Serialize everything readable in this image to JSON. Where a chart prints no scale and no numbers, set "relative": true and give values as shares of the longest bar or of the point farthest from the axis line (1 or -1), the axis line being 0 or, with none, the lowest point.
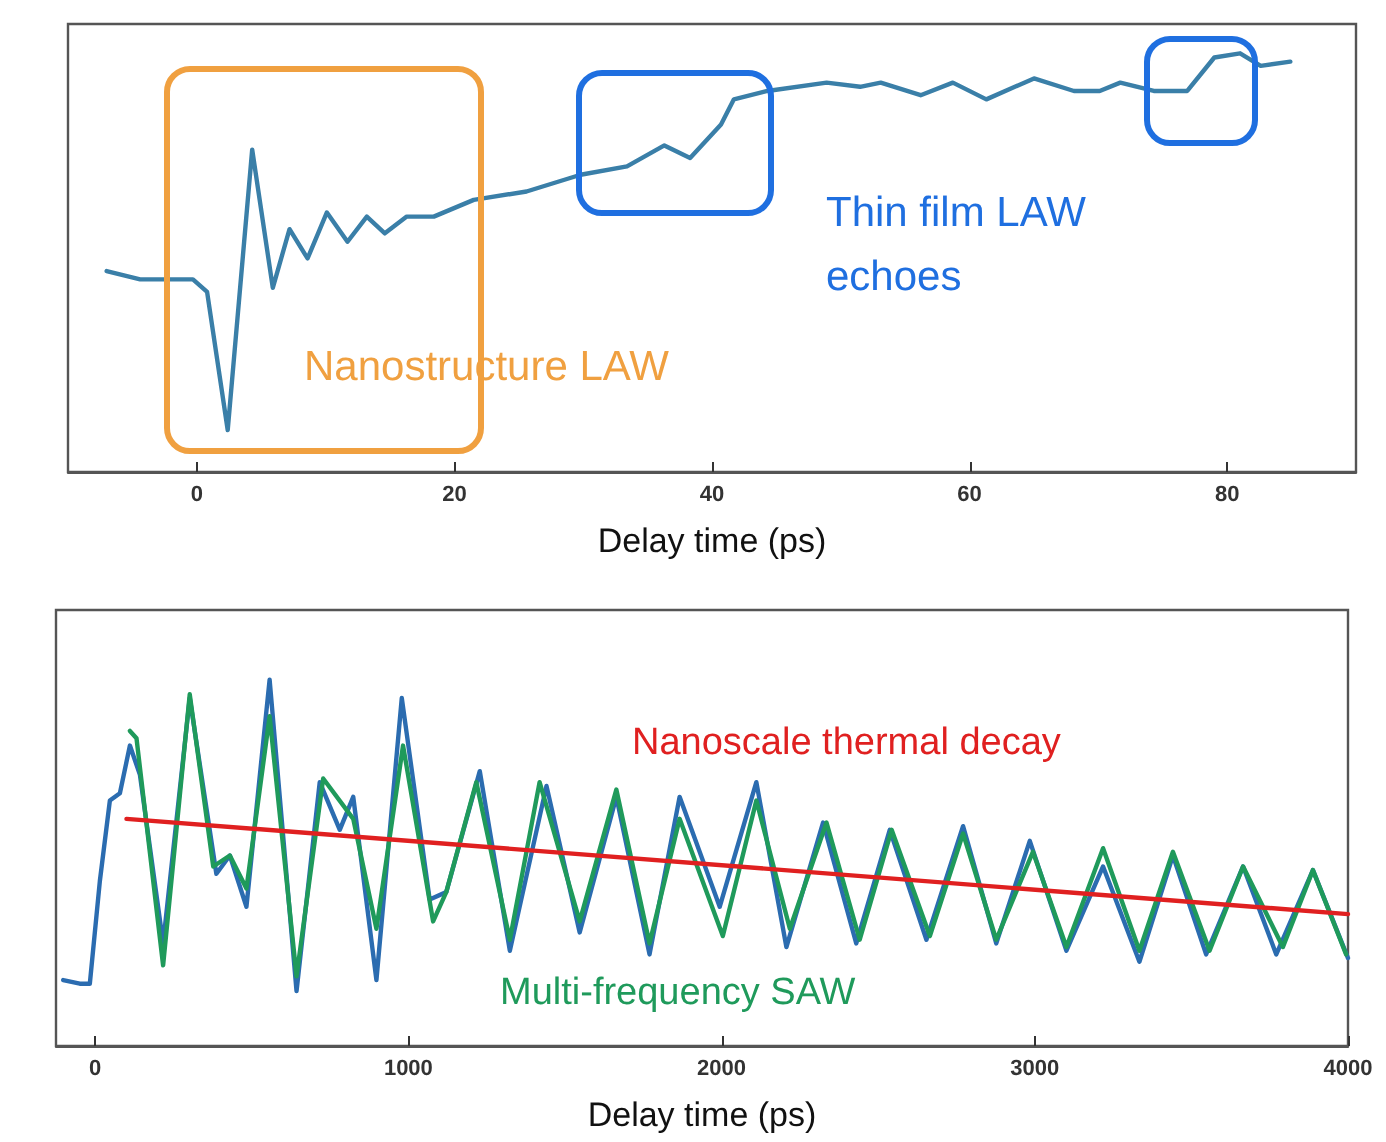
{
  "chart_data": [
    {
      "type": "line",
      "relative": true,
      "xlabel": "Delay time (ps)",
      "xlim": [
        -10,
        90
      ],
      "xticks": [
        0,
        20,
        40,
        60,
        80
      ],
      "tick_labels": "x",
      "annotations": [
        "Nanostructure LAW",
        "Thin film LAW\nechoes"
      ],
      "series": [
        {
          "color": "#3a7fa8",
          "x": [
            -7,
            -4.4,
            -0.3,
            0.8,
            2.4,
            4.3,
            5.9,
            7.2,
            8.6,
            10.1,
            11.7,
            13.2,
            14.6,
            16.3,
            18.4,
            21.5,
            25.6,
            29.8,
            33.4,
            36.3,
            38.3,
            40.7,
            41.7,
            44.3,
            48.9,
            51.5,
            53.1,
            56.2,
            58.7,
            61.3,
            65,
            68.1,
            70.1,
            71.7,
            74.3,
            76.9,
            79,
            81,
            82.6,
            84.9
          ],
          "values": [
            0.48,
            0.46,
            0.46,
            0.43,
            0.1,
            0.77,
            0.44,
            0.58,
            0.51,
            0.62,
            0.55,
            0.61,
            0.57,
            0.61,
            0.61,
            0.65,
            0.67,
            0.71,
            0.73,
            0.78,
            0.75,
            0.83,
            0.89,
            0.91,
            0.93,
            0.92,
            0.93,
            0.9,
            0.93,
            0.89,
            0.94,
            0.91,
            0.91,
            0.93,
            0.91,
            0.91,
            0.99,
            1,
            0.97,
            0.98
          ]
        }
      ]
    },
    {
      "type": "line",
      "relative": true,
      "xlabel": "Delay time (ps)",
      "xlim": [
        -125,
        4000
      ],
      "xticks": [
        0,
        1000,
        2000,
        3000,
        4000
      ],
      "tick_labels": "x",
      "series": [
        {
          "color": "#2b6cb0",
          "x": [
            -102,
            -49,
            -17,
            15,
            47,
            79,
            111,
            143,
            217,
            302,
            387,
            430,
            483,
            557,
            643,
            717,
            781,
            824,
            898,
            979,
            1068,
            1121,
            1228,
            1324,
            1441,
            1547,
            1664,
            1770,
            1866,
            1994,
            2111,
            2207,
            2324,
            2430,
            2537,
            2654,
            2771,
            2877,
            2984,
            3101,
            3218,
            3334,
            3441,
            3547,
            3665,
            3771,
            3888,
            4000
          ],
          "values": [
            0.18,
            0.17,
            0.17,
            0.45,
            0.67,
            0.69,
            0.82,
            0.74,
            0.28,
            0.95,
            0.47,
            0.52,
            0.38,
            1,
            0.15,
            0.72,
            0.59,
            0.68,
            0.18,
            0.95,
            0.4,
            0.42,
            0.75,
            0.26,
            0.71,
            0.31,
            0.68,
            0.25,
            0.68,
            0.38,
            0.72,
            0.27,
            0.61,
            0.28,
            0.59,
            0.29,
            0.6,
            0.28,
            0.56,
            0.26,
            0.49,
            0.23,
            0.52,
            0.25,
            0.49,
            0.25,
            0.48,
            0.24
          ]
        },
        {
          "name": "Multi-frequency SAW",
          "color": "#1f9a5b",
          "x": [
            111,
            132,
            217,
            302,
            377,
            430,
            483,
            557,
            643,
            728,
            824,
            898,
            983,
            1079,
            1121,
            1217,
            1324,
            1419,
            1547,
            1664,
            1770,
            1866,
            2004,
            2111,
            2218,
            2335,
            2441,
            2543,
            2665,
            2771,
            2877,
            2994,
            3101,
            3218,
            3334,
            3441,
            3558,
            3665,
            3792,
            3888,
            3994
          ],
          "values": [
            0.86,
            0.84,
            0.22,
            0.96,
            0.49,
            0.52,
            0.43,
            0.9,
            0.19,
            0.73,
            0.62,
            0.32,
            0.82,
            0.34,
            0.42,
            0.72,
            0.29,
            0.72,
            0.34,
            0.7,
            0.28,
            0.62,
            0.3,
            0.67,
            0.32,
            0.61,
            0.29,
            0.59,
            0.3,
            0.58,
            0.29,
            0.53,
            0.27,
            0.54,
            0.26,
            0.53,
            0.26,
            0.49,
            0.27,
            0.48,
            0.25
          ]
        },
        {
          "name": "Nanoscale thermal decay",
          "color": "#e02020",
          "x": [
            100,
            4000
          ],
          "values": [
            0.62,
            0.36
          ]
        }
      ]
    }
  ]
}
